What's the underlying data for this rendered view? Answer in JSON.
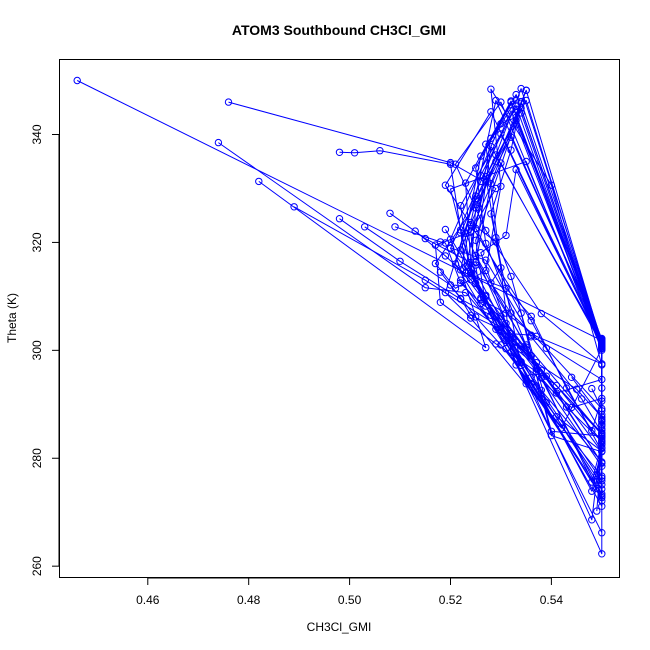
{
  "chart_data": {
    "type": "line",
    "title": "ATOM3 Southbound CH3Cl_GMI",
    "xlabel": "CH3Cl_GMI",
    "ylabel": "Theta (K)",
    "xlim": [
      0.4425,
      0.5535
    ],
    "ylim": [
      257.9,
      353.9
    ],
    "xticks": [
      0.46,
      0.48,
      0.5,
      0.52,
      0.54
    ],
    "yticks": [
      260,
      280,
      300,
      320,
      340
    ],
    "xtick_labels": [
      "0.46",
      "0.48",
      "0.50",
      "0.52",
      "0.54"
    ],
    "ytick_labels": [
      "260",
      "280",
      "300",
      "320",
      "340"
    ],
    "color": "#0000ff",
    "marker": "open-circle",
    "grid": false,
    "series": [
      {
        "points": [
          [
            0.446,
            350.0
          ],
          [
            0.55,
            301.8
          ],
          [
            0.55,
            285.5
          ],
          [
            0.55,
            262.3
          ],
          [
            0.532,
            299.6
          ],
          [
            0.527,
            338.2
          ],
          [
            0.533,
            344.7
          ],
          [
            0.534,
            344.0
          ],
          [
            0.55,
            300.7
          ],
          [
            0.55,
            284.0
          ],
          [
            0.548,
            268.6
          ],
          [
            0.534,
            297.2
          ],
          [
            0.528,
            325.3
          ],
          [
            0.532,
            337.1
          ],
          [
            0.534,
            346.1
          ],
          [
            0.55,
            301.8
          ],
          [
            0.55,
            282.0
          ],
          [
            0.549,
            274.4
          ],
          [
            0.533,
            297.3
          ],
          [
            0.521,
            316.0
          ],
          [
            0.526,
            332.4
          ],
          [
            0.533,
            345.3
          ],
          [
            0.55,
            300.6
          ],
          [
            0.55,
            287.0
          ],
          [
            0.55,
            276.7
          ],
          [
            0.535,
            293.8
          ],
          [
            0.524,
            315.0
          ],
          [
            0.52,
            329.9
          ],
          [
            0.535,
            335.0
          ],
          [
            0.55,
            300.0
          ],
          [
            0.55,
            290.6
          ],
          [
            0.55,
            272.7
          ],
          [
            0.536,
            293.7
          ],
          [
            0.522,
            318.6
          ],
          [
            0.529,
            335.0
          ],
          [
            0.535,
            348.2
          ],
          [
            0.55,
            301.3
          ],
          [
            0.55,
            283.7
          ],
          [
            0.55,
            266.2
          ],
          [
            0.53,
            303.5
          ]
        ]
      },
      {
        "points": [
          [
            0.474,
            338.5
          ],
          [
            0.515,
            311.6
          ],
          [
            0.523,
            310.7
          ],
          [
            0.531,
            301.8
          ],
          [
            0.538,
            296.3
          ],
          [
            0.55,
            281.2
          ],
          [
            0.54,
            284.2
          ],
          [
            0.534,
            306.9
          ],
          [
            0.525,
            322.6
          ],
          [
            0.528,
            339.3
          ],
          [
            0.532,
            346.0
          ],
          [
            0.55,
            302.0
          ],
          [
            0.55,
            293.0
          ],
          [
            0.55,
            275.1
          ],
          [
            0.539,
            290.3
          ],
          [
            0.532,
            313.7
          ],
          [
            0.529,
            320.9
          ],
          [
            0.527,
            332.2
          ],
          [
            0.535,
            346.3
          ],
          [
            0.55,
            301.2
          ],
          [
            0.55,
            286.8
          ],
          [
            0.55,
            278.5
          ],
          [
            0.537,
            296.1
          ],
          [
            0.527,
            319.8
          ],
          [
            0.525,
            333.8
          ],
          [
            0.533,
            347.4
          ],
          [
            0.55,
            301.6
          ],
          [
            0.55,
            283.1
          ],
          [
            0.55,
            273.4
          ],
          [
            0.531,
            300.3
          ],
          [
            0.524,
            314.2
          ],
          [
            0.522,
            326.8
          ],
          [
            0.53,
            340.1
          ],
          [
            0.55,
            300.9
          ],
          [
            0.55,
            284.6
          ],
          [
            0.549,
            276.0
          ]
        ]
      },
      {
        "points": [
          [
            0.476,
            346.0
          ],
          [
            0.52,
            334.8
          ],
          [
            0.529,
            330.0
          ],
          [
            0.524,
            321.9
          ],
          [
            0.517,
            319.5
          ],
          [
            0.518,
            308.9
          ],
          [
            0.529,
            301.2
          ],
          [
            0.541,
            293.5
          ],
          [
            0.55,
            283.1
          ],
          [
            0.543,
            289.5
          ],
          [
            0.538,
            294.9
          ],
          [
            0.532,
            302.4
          ],
          [
            0.526,
            318.1
          ],
          [
            0.531,
            321.3
          ],
          [
            0.533,
            333.5
          ],
          [
            0.55,
            301.2
          ],
          [
            0.55,
            288.8
          ],
          [
            0.55,
            271.1
          ],
          [
            0.538,
            291.1
          ],
          [
            0.527,
            308.2
          ],
          [
            0.525,
            320.4
          ],
          [
            0.533,
            342.6
          ],
          [
            0.55,
            302.1
          ],
          [
            0.55,
            281.8
          ],
          [
            0.548,
            273.9
          ],
          [
            0.536,
            295.0
          ],
          [
            0.524,
            316.3
          ],
          [
            0.523,
            331.0
          ],
          [
            0.532,
            346.2
          ],
          [
            0.55,
            300.4
          ],
          [
            0.55,
            286.3
          ],
          [
            0.55,
            276.3
          ]
        ]
      },
      {
        "points": [
          [
            0.482,
            331.3
          ],
          [
            0.527,
            300.5
          ],
          [
            0.52,
            320.6
          ],
          [
            0.53,
            342.0
          ],
          [
            0.533,
            343.2
          ],
          [
            0.55,
            300.3
          ],
          [
            0.542,
            285.6
          ],
          [
            0.524,
            306.0
          ],
          [
            0.519,
            310.7
          ],
          [
            0.525,
            328.6
          ],
          [
            0.529,
            346.3
          ],
          [
            0.55,
            301.9
          ],
          [
            0.55,
            279.3
          ],
          [
            0.538,
            292.6
          ],
          [
            0.525,
            312.4
          ],
          [
            0.524,
            322.1
          ],
          [
            0.53,
            334.7
          ],
          [
            0.55,
            301.0
          ],
          [
            0.55,
            287.2
          ],
          [
            0.55,
            272.1
          ],
          [
            0.536,
            299.0
          ],
          [
            0.525,
            317.6
          ],
          [
            0.528,
            337.8
          ],
          [
            0.55,
            301.5
          ],
          [
            0.55,
            282.7
          ],
          [
            0.548,
            275.6
          ],
          [
            0.533,
            298.6
          ],
          [
            0.522,
            313.0
          ]
        ]
      },
      {
        "points": [
          [
            0.489,
            326.6
          ],
          [
            0.515,
            313.0
          ],
          [
            0.53,
            304.2
          ],
          [
            0.536,
            299.0
          ],
          [
            0.54,
            285.0
          ],
          [
            0.55,
            284.1
          ],
          [
            0.55,
            297.3
          ],
          [
            0.54,
            330.6
          ],
          [
            0.528,
            348.4
          ],
          [
            0.53,
            330.4
          ],
          [
            0.527,
            314.8
          ],
          [
            0.521,
            311.5
          ],
          [
            0.517,
            316.1
          ],
          [
            0.525,
            327.0
          ],
          [
            0.532,
            339.5
          ],
          [
            0.55,
            302.2
          ],
          [
            0.55,
            285.2
          ],
          [
            0.55,
            275.8
          ],
          [
            0.534,
            297.9
          ],
          [
            0.523,
            315.5
          ],
          [
            0.527,
            331.2
          ],
          [
            0.534,
            344.9
          ],
          [
            0.55,
            301.0
          ]
        ]
      },
      {
        "points": [
          [
            0.498,
            336.7
          ],
          [
            0.501,
            336.6
          ],
          [
            0.506,
            337.0
          ],
          [
            0.52,
            334.5
          ],
          [
            0.522,
            322.3
          ],
          [
            0.523,
            314.3
          ],
          [
            0.531,
            311.5
          ],
          [
            0.536,
            306.3
          ],
          [
            0.543,
            293.0
          ],
          [
            0.548,
            285.1
          ],
          [
            0.55,
            291.1
          ],
          [
            0.544,
            289.4
          ],
          [
            0.534,
            297.7
          ],
          [
            0.526,
            309.7
          ],
          [
            0.522,
            321.8
          ],
          [
            0.529,
            336.2
          ],
          [
            0.534,
            348.5
          ],
          [
            0.55,
            301.7
          ],
          [
            0.55,
            283.3
          ],
          [
            0.549,
            276.8
          ]
        ]
      },
      {
        "points": [
          [
            0.498,
            324.4
          ],
          [
            0.51,
            316.5
          ],
          [
            0.522,
            309.5
          ],
          [
            0.528,
            306.5
          ],
          [
            0.535,
            300.6
          ],
          [
            0.55,
            279.1
          ],
          [
            0.539,
            295.2
          ],
          [
            0.527,
            310.2
          ],
          [
            0.52,
            318.9
          ],
          [
            0.526,
            331.3
          ],
          [
            0.532,
            344.4
          ],
          [
            0.55,
            301.1
          ],
          [
            0.55,
            288.1
          ],
          [
            0.55,
            274.3
          ],
          [
            0.537,
            293.4
          ],
          [
            0.524,
            314.4
          ],
          [
            0.525,
            326.4
          ],
          [
            0.534,
            345.8
          ]
        ]
      },
      {
        "points": [
          [
            0.503,
            322.9
          ],
          [
            0.52,
            312.1
          ],
          [
            0.525,
            306.2
          ],
          [
            0.53,
            301.0
          ],
          [
            0.541,
            287.7
          ],
          [
            0.55,
            281.3
          ],
          [
            0.536,
            305.5
          ],
          [
            0.524,
            323.3
          ],
          [
            0.519,
            330.6
          ],
          [
            0.528,
            344.2
          ],
          [
            0.55,
            301.4
          ],
          [
            0.55,
            286.0
          ],
          [
            0.55,
            273.0
          ],
          [
            0.537,
            296.6
          ],
          [
            0.522,
            314.9
          ],
          [
            0.525,
            327.9
          ],
          [
            0.533,
            341.8
          ]
        ]
      },
      {
        "points": [
          [
            0.508,
            325.4
          ],
          [
            0.515,
            320.7
          ],
          [
            0.525,
            315.8
          ],
          [
            0.526,
            309.4
          ],
          [
            0.531,
            306.9
          ],
          [
            0.537,
            302.6
          ],
          [
            0.55,
            297.5
          ],
          [
            0.538,
            306.8
          ],
          [
            0.527,
            322.2
          ],
          [
            0.521,
            334.5
          ],
          [
            0.53,
            346.0
          ],
          [
            0.55,
            300.8
          ],
          [
            0.55,
            282.5
          ],
          [
            0.549,
            270.2
          ]
        ]
      },
      {
        "points": [
          [
            0.509,
            322.9
          ],
          [
            0.518,
            320.1
          ],
          [
            0.519,
            319.9
          ],
          [
            0.522,
            312.5
          ],
          [
            0.526,
            308.7
          ],
          [
            0.53,
            306.3
          ],
          [
            0.533,
            301.5
          ],
          [
            0.55,
            284.4
          ],
          [
            0.535,
            301.0
          ],
          [
            0.525,
            316.3
          ],
          [
            0.528,
            330.9
          ],
          [
            0.535,
            348.2
          ]
        ]
      },
      {
        "points": [
          [
            0.513,
            322.1
          ],
          [
            0.519,
            317.5
          ],
          [
            0.524,
            313.1
          ],
          [
            0.532,
            303.1
          ],
          [
            0.536,
            302.8
          ],
          [
            0.55,
            294.6
          ],
          [
            0.541,
            292.1
          ],
          [
            0.531,
            305.0
          ],
          [
            0.523,
            321.7
          ],
          [
            0.526,
            336.0
          ],
          [
            0.533,
            346.4
          ]
        ]
      },
      {
        "points": [
          [
            0.519,
            322.4
          ],
          [
            0.527,
            310.0
          ],
          [
            0.529,
            303.9
          ],
          [
            0.534,
            300.2
          ],
          [
            0.55,
            284.7
          ],
          [
            0.546,
            291.0
          ],
          [
            0.536,
            302.5
          ],
          [
            0.527,
            316.7
          ],
          [
            0.52,
            319.0
          ]
        ]
      },
      {
        "points": [
          [
            0.524,
            323.7
          ],
          [
            0.529,
            320.1
          ],
          [
            0.53,
            315.3
          ],
          [
            0.528,
            312.5
          ],
          [
            0.532,
            306.9
          ],
          [
            0.539,
            300.4
          ],
          [
            0.55,
            289.2
          ],
          [
            0.548,
            292.9
          ]
        ]
      },
      {
        "points": [
          [
            0.518,
            314.5
          ],
          [
            0.522,
            309.6
          ],
          [
            0.524,
            306.5
          ],
          [
            0.53,
            303.9
          ],
          [
            0.537,
            297.7
          ],
          [
            0.545,
            292.8
          ],
          [
            0.55,
            287.6
          ],
          [
            0.544,
            295.0
          ]
        ]
      }
    ]
  }
}
